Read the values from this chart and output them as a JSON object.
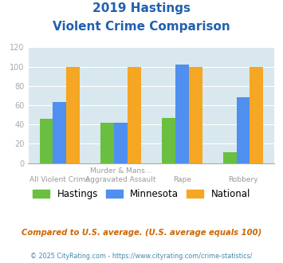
{
  "title_line1": "2019 Hastings",
  "title_line2": "Violent Crime Comparison",
  "hastings": [
    46,
    42,
    47,
    11
  ],
  "minnesota": [
    63,
    42,
    102,
    68
  ],
  "national": [
    100,
    100,
    100,
    100
  ],
  "colors": {
    "hastings": "#6abf40",
    "minnesota": "#4f8fef",
    "national": "#f5a623"
  },
  "ylim": [
    0,
    120
  ],
  "yticks": [
    0,
    20,
    40,
    60,
    80,
    100,
    120
  ],
  "title_color": "#2060b0",
  "bg_color": "#d8e8ee",
  "footer_text": "Compared to U.S. average. (U.S. average equals 100)",
  "copyright_text": "© 2025 CityRating.com - https://www.cityrating.com/crime-statistics/",
  "legend_labels": [
    "Hastings",
    "Minnesota",
    "National"
  ],
  "bar_width": 0.22,
  "xlabel_row1": [
    "",
    "Murder & Mans...",
    "",
    ""
  ],
  "xlabel_row2": [
    "All Violent Crime",
    "Aggravated Assault",
    "Rape",
    "Robbery"
  ]
}
